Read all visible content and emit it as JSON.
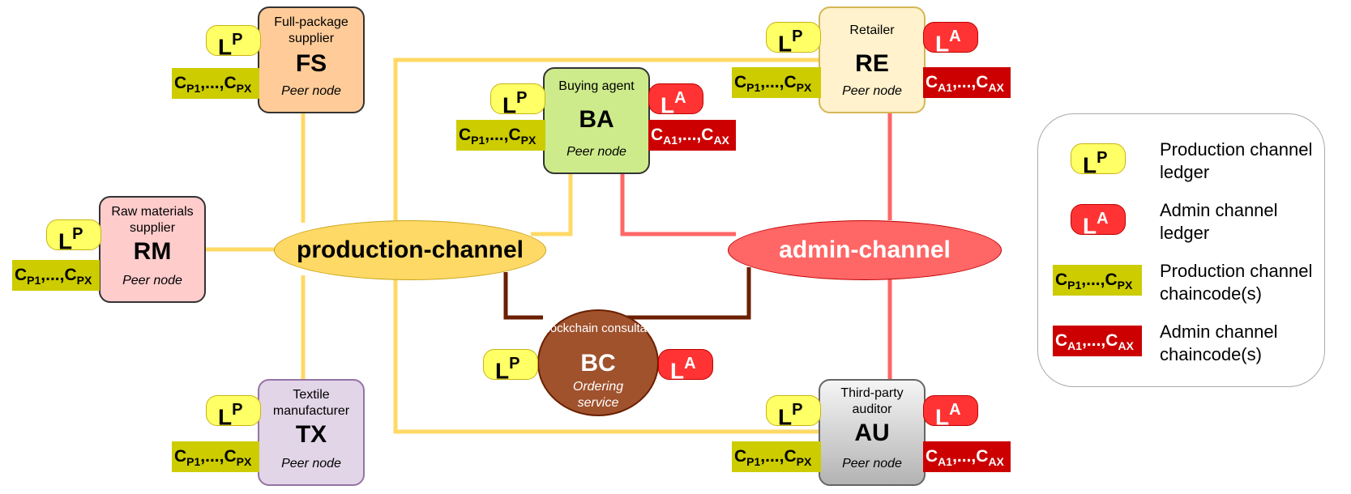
{
  "nodes": {
    "fs": {
      "role": "Full-package supplier",
      "abbr": "FS",
      "kind": "Peer node"
    },
    "rm": {
      "role": "Raw materials supplier",
      "abbr": "RM",
      "kind": "Peer node"
    },
    "tx": {
      "role": "Textile manufacturer",
      "abbr": "TX",
      "kind": "Peer node"
    },
    "ba": {
      "role": "Buying agent",
      "abbr": "BA",
      "kind": "Peer node"
    },
    "re": {
      "role": "Retailer",
      "abbr": "RE",
      "kind": "Peer node"
    },
    "au": {
      "role": "Third-party auditor",
      "abbr": "AU",
      "kind": "Peer node"
    },
    "bc": {
      "role": "Blockchain consultant",
      "abbr": "BC",
      "kind": "Ordering service"
    }
  },
  "channels": {
    "production": "production-channel",
    "admin": "admin-channel"
  },
  "ledger": {
    "letter": "L",
    "production_sup": "P",
    "admin_sup": "A"
  },
  "chaincode": {
    "production": {
      "c1": "C",
      "s1": "P1",
      "mid": ",...,",
      "c2": "C",
      "s2": "PX"
    },
    "admin": {
      "c1": "C",
      "s1": "A1",
      "mid": ",...,",
      "c2": "C",
      "s2": "AX"
    }
  },
  "legend": {
    "production_ledger": "Production channel ledger",
    "admin_ledger": "Admin channel ledger",
    "production_chaincode": "Production channel chaincode(s)",
    "admin_chaincode": "Admin channel chaincode(s)"
  },
  "colors": {
    "production_line": "#ffd966",
    "admin_line": "#ff6666",
    "orderer_line": "#6b1f00",
    "fs_fill": "#ffcc99",
    "rm_fill": "#ffcccc",
    "tx_fill": "#e1d5e7",
    "ba_fill": "#cdeb8b",
    "re_fill": "#fff2cc",
    "bc_fill": "#a0522d",
    "production_channel_fill": "#ffd966",
    "admin_channel_fill": "#ff6666"
  }
}
